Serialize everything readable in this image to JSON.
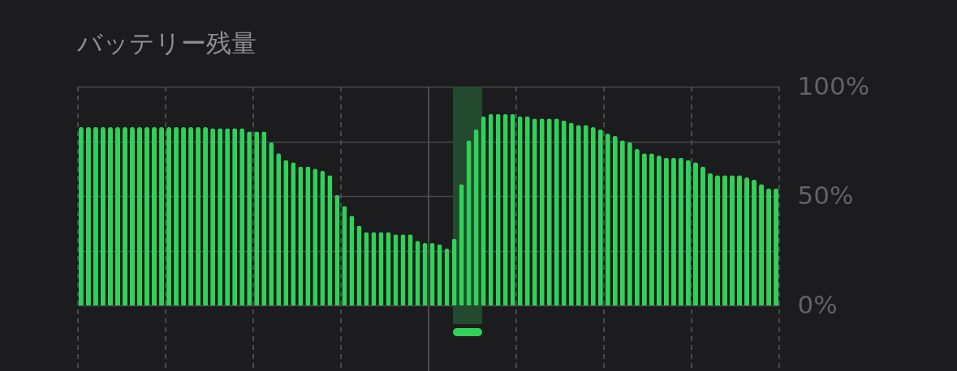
{
  "chart_data": {
    "type": "bar",
    "title": "バッテリー残量",
    "categories": [
      null,
      null,
      null,
      null,
      null,
      null,
      null,
      null,
      null,
      null,
      null,
      null,
      null,
      null,
      null,
      null,
      null,
      null,
      null,
      null,
      null,
      null,
      null,
      null,
      null,
      null,
      null,
      null,
      null,
      null,
      null,
      null,
      null,
      null,
      null,
      null,
      null,
      null,
      null,
      null,
      null,
      null,
      null,
      null,
      null,
      null,
      null,
      null,
      null,
      null,
      null,
      null,
      null,
      null,
      null,
      null,
      null,
      null,
      null,
      null,
      null,
      null,
      null,
      null,
      null,
      null,
      null,
      null,
      null,
      null,
      null,
      null,
      null,
      null,
      null,
      null,
      null,
      null,
      null,
      null,
      null,
      null,
      null,
      null,
      null,
      null,
      null,
      null,
      null,
      null,
      null,
      null,
      null,
      null,
      null,
      null
    ],
    "series": [
      {
        "color": "#30d158",
        "values": [
          81.5,
          81.5,
          81.5,
          81.5,
          81.5,
          81.5,
          81.5,
          81.5,
          81.5,
          81.5,
          81.5,
          81.5,
          81.5,
          81.5,
          81.5,
          81.5,
          81.5,
          81.5,
          81,
          81,
          81,
          81,
          81,
          79.5,
          79.5,
          79.5,
          74.5,
          69.5,
          66.5,
          65.5,
          63.5,
          63.5,
          62.5,
          61.5,
          59.5,
          50.5,
          45.5,
          41,
          36.5,
          33.5,
          33.5,
          33.5,
          33.5,
          32.5,
          32.5,
          32.5,
          29.5,
          28.5,
          28.5,
          28,
          26,
          30.5,
          55.5,
          75.5,
          80.5,
          86.5,
          87.5,
          87.5,
          87.5,
          87.5,
          86.5,
          86.5,
          85.5,
          85.5,
          85.5,
          85.5,
          84.5,
          83.5,
          82.5,
          82.5,
          81.5,
          80.5,
          78.5,
          77.5,
          75.5,
          74.5,
          71.5,
          69.5,
          69.5,
          68.5,
          67.5,
          67.5,
          67.5,
          66.5,
          65.5,
          63.5,
          60.5,
          59.5,
          59.5,
          59.5,
          59.5,
          58.5,
          57.5,
          55.5,
          53.5,
          53.5
        ]
      }
    ],
    "ylim": [
      0,
      100
    ],
    "yticks": [
      {
        "value": 0,
        "label": "0%"
      },
      {
        "value": 25,
        "label": null
      },
      {
        "value": 50,
        "label": "50%"
      },
      {
        "value": 75,
        "label": null
      },
      {
        "value": 100,
        "label": "100%"
      }
    ],
    "tick_labels": "y",
    "grid": true
  }
}
